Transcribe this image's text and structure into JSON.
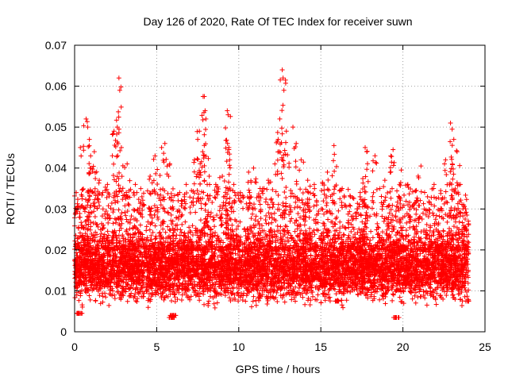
{
  "chart_data": {
    "type": "scatter",
    "title": "Day 126 of 2020, Rate Of TEC Index for receiver suwn",
    "xlabel": "GPS time / hours",
    "ylabel": "ROTI / TECUs",
    "xlim": [
      0,
      25
    ],
    "ylim": [
      0,
      0.07
    ],
    "x_ticks": [
      0,
      5,
      10,
      15,
      20,
      25
    ],
    "x_tick_labels": [
      "0",
      "5",
      "10",
      "15",
      "20",
      "25"
    ],
    "y_ticks": [
      0,
      0.01,
      0.02,
      0.03,
      0.04,
      0.05,
      0.06,
      0.07
    ],
    "y_tick_labels": [
      "0",
      "0.01",
      "0.02",
      "0.03",
      "0.04",
      "0.05",
      "0.06",
      "0.07"
    ],
    "grid": true,
    "marker": "+",
    "series_color": "#ff0000",
    "series": [
      {
        "name": "ROTI",
        "points": [
          [
            0.1,
            0.034
          ],
          [
            0.3,
            0.0045
          ],
          [
            0.35,
            0.045
          ],
          [
            0.7,
            0.052
          ],
          [
            0.8,
            0.05
          ],
          [
            0.9,
            0.047
          ],
          [
            1.0,
            0.04
          ],
          [
            1.2,
            0.044
          ],
          [
            1.5,
            0.037
          ],
          [
            2.0,
            0.036
          ],
          [
            2.3,
            0.043
          ],
          [
            2.4,
            0.049
          ],
          [
            2.6,
            0.05
          ],
          [
            2.7,
            0.062
          ],
          [
            2.75,
            0.059
          ],
          [
            2.85,
            0.045
          ],
          [
            3.2,
            0.041
          ],
          [
            3.7,
            0.036
          ],
          [
            4.1,
            0.033
          ],
          [
            4.6,
            0.038
          ],
          [
            4.9,
            0.043
          ],
          [
            5.3,
            0.045
          ],
          [
            5.5,
            0.046
          ],
          [
            5.9,
            0.0035
          ],
          [
            6.0,
            0.004
          ],
          [
            5.8,
            0.041
          ],
          [
            6.4,
            0.034
          ],
          [
            6.8,
            0.036
          ],
          [
            7.3,
            0.042
          ],
          [
            7.5,
            0.047
          ],
          [
            7.6,
            0.049
          ],
          [
            7.8,
            0.044
          ],
          [
            7.9,
            0.0575
          ],
          [
            7.95,
            0.054
          ],
          [
            8.0,
            0.052
          ],
          [
            8.2,
            0.038
          ],
          [
            8.6,
            0.036
          ],
          [
            9.0,
            0.038
          ],
          [
            9.3,
            0.054
          ],
          [
            9.35,
            0.053
          ],
          [
            9.4,
            0.045
          ],
          [
            9.45,
            0.042
          ],
          [
            9.7,
            0.036
          ],
          [
            10.1,
            0.034
          ],
          [
            10.6,
            0.039
          ],
          [
            10.9,
            0.04
          ],
          [
            11.3,
            0.035
          ],
          [
            11.8,
            0.037
          ],
          [
            12.2,
            0.041
          ],
          [
            12.4,
            0.047
          ],
          [
            12.5,
            0.052
          ],
          [
            12.65,
            0.064
          ],
          [
            12.7,
            0.062
          ],
          [
            12.75,
            0.059
          ],
          [
            12.9,
            0.049
          ],
          [
            13.3,
            0.05
          ],
          [
            13.5,
            0.046
          ],
          [
            13.8,
            0.042
          ],
          [
            14.2,
            0.037
          ],
          [
            14.6,
            0.036
          ],
          [
            15.1,
            0.0365
          ],
          [
            15.4,
            0.039
          ],
          [
            15.8,
            0.0455
          ],
          [
            16.0,
            0.0075
          ],
          [
            16.3,
            0.035
          ],
          [
            16.8,
            0.033
          ],
          [
            17.4,
            0.034
          ],
          [
            17.7,
            0.045
          ],
          [
            17.8,
            0.044
          ],
          [
            18.3,
            0.043
          ],
          [
            18.6,
            0.035
          ],
          [
            18.9,
            0.037
          ],
          [
            19.4,
            0.0445
          ],
          [
            19.6,
            0.0035
          ],
          [
            19.8,
            0.036
          ],
          [
            19.9,
            0.0395
          ],
          [
            20.3,
            0.036
          ],
          [
            20.8,
            0.0345
          ],
          [
            21.1,
            0.0405
          ],
          [
            21.5,
            0.033
          ],
          [
            21.9,
            0.036
          ],
          [
            22.3,
            0.0345
          ],
          [
            22.6,
            0.042
          ],
          [
            22.9,
            0.051
          ],
          [
            23.0,
            0.0495
          ],
          [
            23.1,
            0.047
          ],
          [
            23.3,
            0.044
          ],
          [
            23.5,
            0.036
          ],
          [
            23.7,
            0.031
          ],
          [
            23.9,
            0.0285
          ],
          [
            24.0,
            0.0075
          ]
        ],
        "background_band": {
          "x_range": [
            0,
            24
          ],
          "y_low": 0.005,
          "y_high": 0.025,
          "note": "dense cloud of points between these bounds"
        }
      }
    ]
  }
}
